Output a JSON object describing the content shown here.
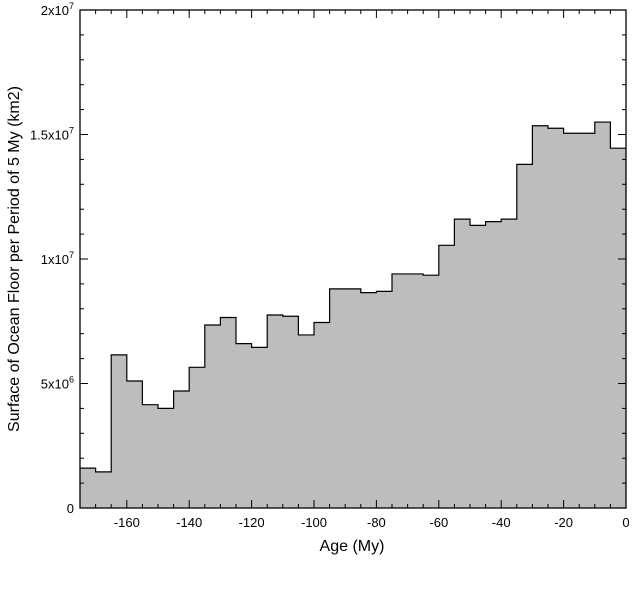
{
  "chart_data": {
    "type": "area",
    "title": "",
    "xlabel": "Age (My)",
    "ylabel": "Surface of Ocean Floor per Period of 5 My (km2)",
    "xlim": [
      -175,
      0
    ],
    "ylim": [
      0,
      20000000
    ],
    "grid": false,
    "legend": "none",
    "fill_color": "#bdbdbd",
    "line_color": "#000000",
    "x_ticks": [
      -160,
      -140,
      -120,
      -100,
      -80,
      -60,
      -40,
      -20,
      0
    ],
    "x_tick_labels": [
      "-160",
      "-140",
      "-120",
      "-100",
      "-80",
      "-60",
      "-40",
      "-20",
      "0"
    ],
    "y_ticks": [
      {
        "value": 0,
        "base": "0",
        "exp": ""
      },
      {
        "value": 5000000,
        "base": "5x10",
        "exp": "6"
      },
      {
        "value": 10000000,
        "base": "1x10",
        "exp": "7"
      },
      {
        "value": 15000000,
        "base": "1.5x10",
        "exp": "7"
      },
      {
        "value": 20000000,
        "base": "2x10",
        "exp": "7"
      }
    ],
    "bin_width": 5,
    "series": [
      {
        "bins_left_edge": [
          -175,
          -170,
          -165,
          -160,
          -155,
          -150,
          -145,
          -140,
          -135,
          -130,
          -125,
          -120,
          -115,
          -110,
          -105,
          -100,
          -95,
          -90,
          -85,
          -80,
          -75,
          -70,
          -65,
          -60,
          -55,
          -50,
          -45,
          -40,
          -35,
          -30,
          -25,
          -20,
          -15,
          -10,
          -5
        ],
        "values": [
          1600000,
          1450000,
          6150000,
          5100000,
          4150000,
          4000000,
          4700000,
          5650000,
          7350000,
          7650000,
          6600000,
          6450000,
          7750000,
          7700000,
          6950000,
          7450000,
          8800000,
          8800000,
          8650000,
          8700000,
          9400000,
          9400000,
          9350000,
          10550000,
          11600000,
          11350000,
          11500000,
          11600000,
          13800000,
          15350000,
          15250000,
          15050000,
          15050000,
          15500000,
          14450000
        ]
      }
    ]
  }
}
